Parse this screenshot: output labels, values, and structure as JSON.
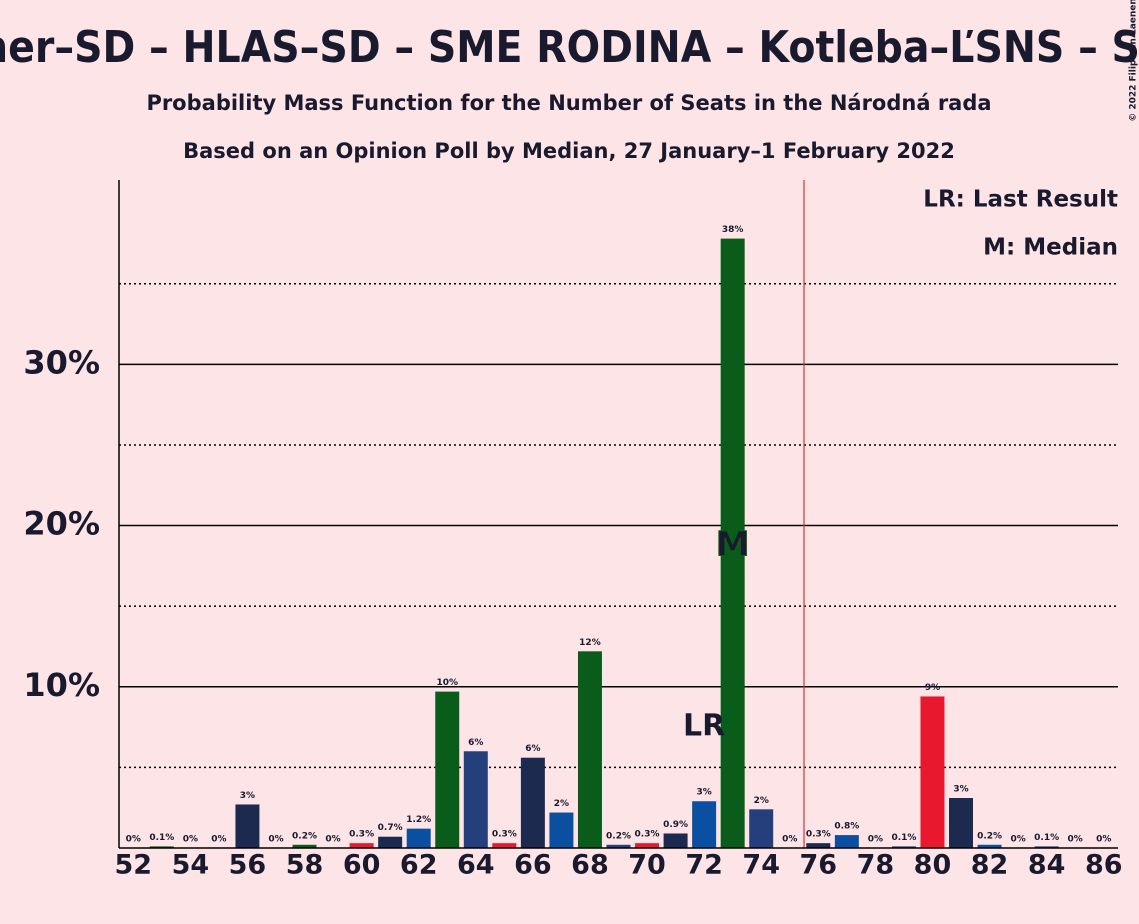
{
  "chart_data": {
    "type": "bar",
    "title": "ner–SD – HLAS–SD – SME RODINA – Kotleba–ĽSNS – S",
    "subtitle": "Probability Mass Function for the Number of Seats in the Národná rada",
    "subtitle2": "Based on an Opinion Poll by Median, 27 January–1 February 2022",
    "copyright": "© 2022 Filip van Laenen",
    "x": [
      52,
      53,
      54,
      55,
      56,
      57,
      58,
      59,
      60,
      61,
      62,
      63,
      64,
      65,
      66,
      67,
      68,
      69,
      70,
      71,
      72,
      73,
      74,
      75,
      76,
      77,
      78,
      79,
      80,
      81,
      82,
      83,
      84,
      85,
      86
    ],
    "values": [
      0,
      0.1,
      0,
      0,
      2.7,
      0,
      0.2,
      0,
      0.3,
      0.7,
      1.2,
      9.7,
      6.0,
      0.3,
      5.6,
      2.2,
      12.2,
      0.2,
      0.3,
      0.9,
      2.9,
      37.8,
      2.4,
      0,
      0.3,
      0.8,
      0,
      0.1,
      9.4,
      3.1,
      0.2,
      0,
      0.1,
      0,
      0
    ],
    "value_labels": [
      "0%",
      "0.1%",
      "0%",
      "0%",
      "3%",
      "0%",
      "0.2%",
      "0%",
      "0.3%",
      "0.7%",
      "1.2%",
      "10%",
      "6%",
      "0.3%",
      "6%",
      "2%",
      "12%",
      "0.2%",
      "0.3%",
      "0.9%",
      "3%",
      "38%",
      "2%",
      "0%",
      "0.3%",
      "0.8%",
      "0%",
      "0.1%",
      "9%",
      "3%",
      "0.2%",
      "0%",
      "0.1%",
      "0%",
      "0%"
    ],
    "colors": [
      "#0b4fa0",
      "#0a5c1a",
      "#253e7c",
      "#e8182f",
      "#1b2a4e",
      "#0b4fa0",
      "#0a5c1a",
      "#253e7c",
      "#e8182f",
      "#1b2a4e",
      "#0b4fa0",
      "#0a5c1a",
      "#253e7c",
      "#e8182f",
      "#1b2a4e",
      "#0b4fa0",
      "#0a5c1a",
      "#253e7c",
      "#e8182f",
      "#1b2a4e",
      "#0b4fa0",
      "#0a5c1a",
      "#253e7c",
      "#e8182f",
      "#1b2a4e",
      "#0b4fa0",
      "#0a5c1a",
      "#253e7c",
      "#e8182f",
      "#1b2a4e",
      "#0b4fa0",
      "#0a5c1a",
      "#253e7c",
      "#e8182f",
      "#1b2a4e"
    ],
    "xlim": [
      51.5,
      86.5
    ],
    "xticks": [
      52,
      54,
      56,
      58,
      60,
      62,
      64,
      66,
      68,
      70,
      72,
      74,
      76,
      78,
      80,
      82,
      84,
      86
    ],
    "ylim": [
      0,
      41
    ],
    "yticks": [
      {
        "value": 10,
        "label": "10%"
      },
      {
        "value": 20,
        "label": "20%"
      },
      {
        "value": 30,
        "label": "30%"
      }
    ],
    "minor_grid": [
      5,
      15,
      25,
      35
    ],
    "majority_line": 75.5,
    "last_result": {
      "label": "LR",
      "x": 72
    },
    "median": {
      "label": "M",
      "x": 73
    },
    "legend": [
      "LR: Last Result",
      "M: Median"
    ]
  }
}
